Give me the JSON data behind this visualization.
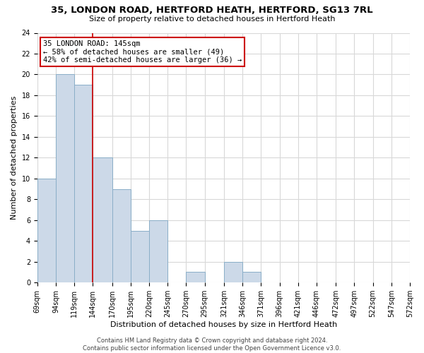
{
  "title": "35, LONDON ROAD, HERTFORD HEATH, HERTFORD, SG13 7RL",
  "subtitle": "Size of property relative to detached houses in Hertford Heath",
  "xlabel": "Distribution of detached houses by size in Hertford Heath",
  "ylabel": "Number of detached properties",
  "bin_left_edges": [
    69,
    94,
    119,
    144,
    170,
    195,
    220,
    245,
    270,
    295,
    321,
    346,
    371,
    396,
    421,
    446,
    472,
    497,
    522,
    547
  ],
  "bin_labels": [
    "69sqm",
    "94sqm",
    "119sqm",
    "144sqm",
    "170sqm",
    "195sqm",
    "220sqm",
    "245sqm",
    "270sqm",
    "295sqm",
    "321sqm",
    "346sqm",
    "371sqm",
    "396sqm",
    "421sqm",
    "446sqm",
    "472sqm",
    "497sqm",
    "522sqm",
    "547sqm",
    "572sqm"
  ],
  "all_ticks": [
    69,
    94,
    119,
    144,
    170,
    195,
    220,
    245,
    270,
    295,
    321,
    346,
    371,
    396,
    421,
    446,
    472,
    497,
    522,
    547,
    572
  ],
  "counts": [
    10,
    20,
    19,
    12,
    9,
    5,
    6,
    0,
    1,
    0,
    2,
    1,
    0,
    0,
    0,
    0,
    0,
    0,
    0,
    0
  ],
  "bar_color": "#ccd9e8",
  "bar_edge_color": "#8aaec8",
  "grid_color": "#d8d8d8",
  "vline_x": 144,
  "vline_color": "#cc0000",
  "annotation_text": "35 LONDON ROAD: 145sqm\n← 58% of detached houses are smaller (49)\n42% of semi-detached houses are larger (36) →",
  "annotation_box_facecolor": "#ffffff",
  "annotation_box_edgecolor": "#cc0000",
  "ylim": [
    0,
    24
  ],
  "yticks": [
    0,
    2,
    4,
    6,
    8,
    10,
    12,
    14,
    16,
    18,
    20,
    22,
    24
  ],
  "xmin": 69,
  "xmax": 572,
  "footer": "Contains HM Land Registry data © Crown copyright and database right 2024.\nContains public sector information licensed under the Open Government Licence v3.0.",
  "bg_color": "#ffffff",
  "title_fontsize": 9.5,
  "subtitle_fontsize": 8,
  "axis_label_fontsize": 8,
  "tick_fontsize": 7,
  "footer_fontsize": 6
}
